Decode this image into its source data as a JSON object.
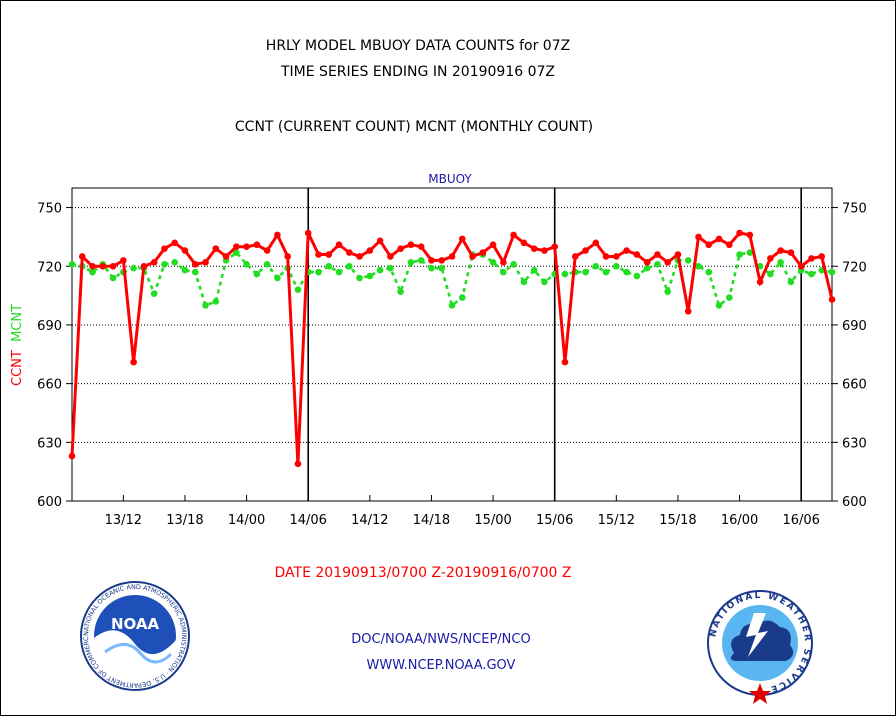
{
  "titles": {
    "line1": "HRLY MODEL MBUOY DATA COUNTS for 07Z",
    "line2": "TIME SERIES ENDING IN 20190916 07Z",
    "line3": "CCNT (CURRENT COUNT) MCNT (MONTHLY COUNT)"
  },
  "footer": {
    "date_range": "DATE 20190913/0700 Z-20190916/0700 Z",
    "org": "DOC/NOAA/NWS/NCEP/NCO",
    "url": "WWW.NCEP.NOAA.GOV"
  },
  "logos": {
    "noaa_text": "NOAA",
    "noaa_ring": "NATIONAL OCEANIC AND ATMOSPHERIC ADMINISTRATION · U.S. DEPARTMENT OF COMMERCE ·",
    "nws_ring": "NATIONAL WEATHER SERVICE"
  },
  "colors": {
    "ccnt": "#ff0000",
    "mcnt": "#22dd22",
    "series_label": "#1a1aa6",
    "grid": "#000000"
  },
  "chart_data": {
    "type": "line",
    "series_label": "MBUOY",
    "ylabel_parts": [
      {
        "text": "CCNT",
        "color": "#ff0000"
      },
      {
        "text": "MCNT",
        "color": "#22dd22"
      }
    ],
    "ylim": [
      600,
      760
    ],
    "yticks": [
      600,
      630,
      660,
      690,
      720,
      750
    ],
    "grid": "dotted horizontal",
    "x_ticks": [
      {
        "label": "13/12",
        "hour": 5
      },
      {
        "label": "13/18",
        "hour": 11
      },
      {
        "label": "14/00",
        "hour": 17
      },
      {
        "label": "14/06",
        "hour": 23
      },
      {
        "label": "14/12",
        "hour": 29
      },
      {
        "label": "14/18",
        "hour": 35
      },
      {
        "label": "15/00",
        "hour": 41
      },
      {
        "label": "15/06",
        "hour": 47
      },
      {
        "label": "15/12",
        "hour": 53
      },
      {
        "label": "15/18",
        "hour": 59
      },
      {
        "label": "16/00",
        "hour": 65
      },
      {
        "label": "16/06",
        "hour": 71
      }
    ],
    "day_lines_hour": [
      23,
      47,
      71
    ],
    "x_start": "2019-09-13 07Z",
    "x_end": "2019-09-16 07Z",
    "series": [
      {
        "name": "CCNT",
        "style": "solid",
        "values": [
          623,
          725,
          720,
          720,
          720,
          723,
          671,
          720,
          722,
          729,
          732,
          728,
          721,
          722,
          729,
          725,
          730,
          730,
          731,
          728,
          736,
          725,
          619,
          737,
          726,
          726,
          731,
          727,
          725,
          728,
          733,
          725,
          729,
          731,
          730,
          723,
          723,
          725,
          734,
          725,
          727,
          731,
          722,
          736,
          732,
          729,
          728,
          730,
          671,
          725,
          728,
          732,
          725,
          725,
          728,
          726,
          722,
          726,
          722,
          726,
          697,
          735,
          731,
          734,
          731,
          737,
          736,
          712,
          724,
          728,
          727,
          720,
          724,
          725,
          703
        ]
      },
      {
        "name": "MCNT",
        "style": "dashed",
        "values": [
          721,
          720,
          717,
          721,
          714,
          717,
          719,
          719,
          706,
          721,
          722,
          718,
          717,
          700,
          702,
          723,
          727,
          721,
          716,
          721,
          714,
          719,
          708,
          717,
          717,
          720,
          717,
          720,
          714,
          715,
          718,
          719,
          707,
          722,
          723,
          719,
          719,
          700,
          704,
          726,
          726,
          722,
          717,
          721,
          712,
          718,
          712,
          716,
          716,
          717,
          717,
          720,
          717,
          720,
          717,
          715,
          719,
          721,
          707,
          723,
          723,
          720,
          717,
          700,
          704,
          726,
          727,
          720,
          716,
          722,
          712,
          718,
          716,
          718,
          717
        ]
      }
    ]
  }
}
